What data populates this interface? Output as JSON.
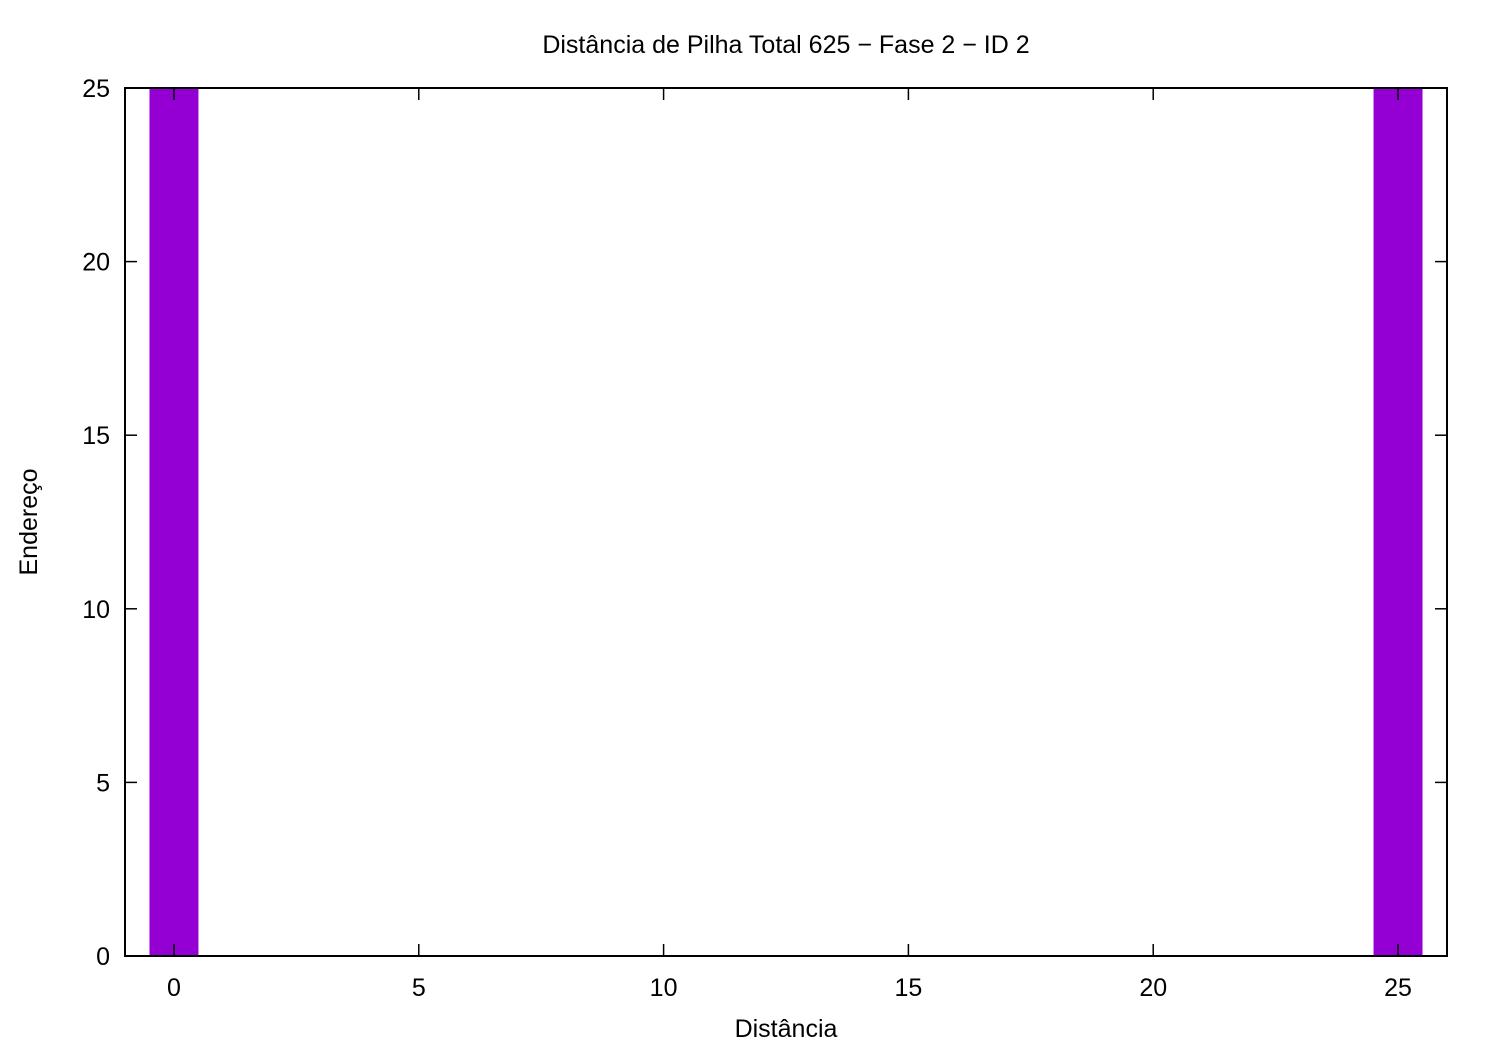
{
  "chart_data": {
    "type": "bar",
    "title": "Distância de Pilha Total 625 − Fase  2 − ID 2",
    "xlabel": "Distância",
    "ylabel": "Endereço",
    "xlim": [
      -1,
      26
    ],
    "ylim": [
      0,
      25
    ],
    "xticks": [
      0,
      5,
      10,
      15,
      20,
      25
    ],
    "yticks": [
      0,
      5,
      10,
      15,
      20,
      25
    ],
    "bar_width": 1,
    "grid": false,
    "legend": "none",
    "series": [
      {
        "color": "#9400d3",
        "points": [
          {
            "x": 0,
            "y": 25
          },
          {
            "x": 25,
            "y": 25
          }
        ]
      }
    ]
  }
}
